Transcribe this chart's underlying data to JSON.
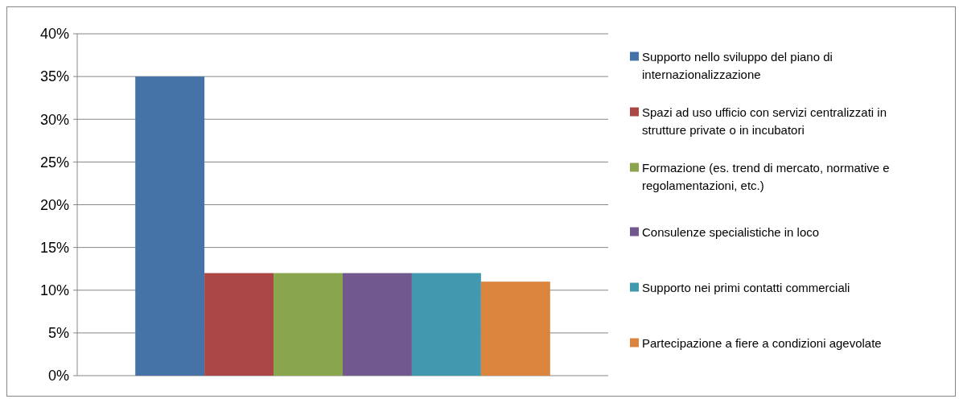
{
  "chart_data": {
    "type": "bar",
    "categories": [
      null
    ],
    "series": [
      {
        "name": "Supporto nello sviluppo del piano di internazionalizzazione",
        "color": "#4572a7",
        "values": [
          35
        ]
      },
      {
        "name": "Spazi ad uso ufficio con servizi centralizzati in strutture private o in incubatori",
        "color": "#aa4643",
        "values": [
          12
        ]
      },
      {
        "name": "Formazione (es. trend di mercato, normative e regolamentazioni, etc.)",
        "color": "#89a54e",
        "values": [
          12
        ]
      },
      {
        "name": "Consulenze specialistiche in loco",
        "color": "#71588f",
        "values": [
          12
        ]
      },
      {
        "name": "Supporto nei primi contatti commerciali",
        "color": "#4198af",
        "values": [
          12
        ]
      },
      {
        "name": "Partecipazione a fiere a condizioni agevolate",
        "color": "#db843d",
        "values": [
          11
        ]
      }
    ],
    "ylim": [
      0,
      40
    ],
    "yticks": [
      {
        "value": 0,
        "label": "0%"
      },
      {
        "value": 5,
        "label": "5%"
      },
      {
        "value": 10,
        "label": "10%"
      },
      {
        "value": 15,
        "label": "15%"
      },
      {
        "value": 20,
        "label": "20%"
      },
      {
        "value": 25,
        "label": "25%"
      },
      {
        "value": 30,
        "label": "30%"
      },
      {
        "value": 35,
        "label": "35%"
      },
      {
        "value": 40,
        "label": "40%"
      }
    ],
    "grid": "y",
    "legend": "right"
  }
}
